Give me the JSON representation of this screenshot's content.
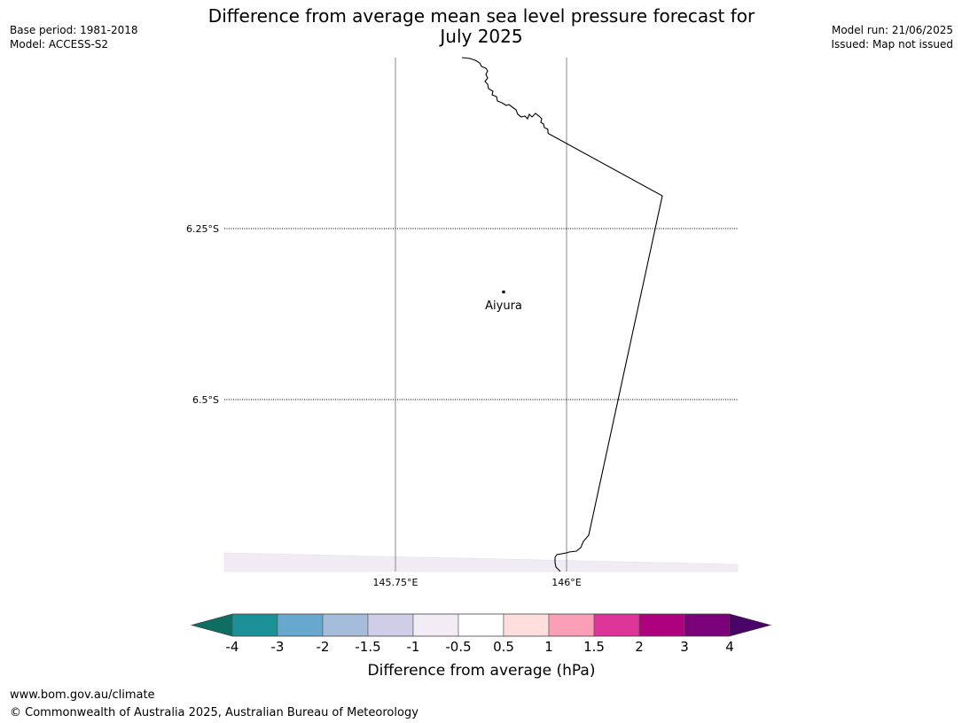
{
  "header": {
    "title_line1": "Difference from average mean sea level pressure forecast for",
    "title_line2": "July 2025",
    "base_period": "Base period: 1981-2018",
    "model": "Model: ACCESS-S2",
    "model_run": "Model run: 21/06/2025",
    "issued": "Issued: Map not issued"
  },
  "map": {
    "lat_labels": [
      "6.25°S",
      "6.5°S"
    ],
    "lon_labels": [
      "145.75°E",
      "146°E"
    ],
    "place": {
      "name": "Aiyura"
    },
    "coastline_color": "#000000",
    "shading_color": "#f1ebf3"
  },
  "colorbar": {
    "label": "Difference from average (hPa)",
    "ticks": [
      "-4",
      "-3",
      "-2",
      "-1.5",
      "-1",
      "-0.5",
      "0.5",
      "1",
      "1.5",
      "2",
      "3",
      "4"
    ],
    "under_color": "#0e6e61",
    "over_color": "#4a0366",
    "colors": [
      "#1b9097",
      "#68a8cf",
      "#a6bcdb",
      "#d0cee6",
      "#f2ecf5",
      "#ffffff",
      "#ffdede",
      "#f99fb6",
      "#dd3497",
      "#ae017e",
      "#7a0177"
    ]
  },
  "footer": {
    "url": "www.bom.gov.au/climate",
    "copyright": "© Commonwealth of Australia 2025, Australian Bureau of Meteorology"
  }
}
